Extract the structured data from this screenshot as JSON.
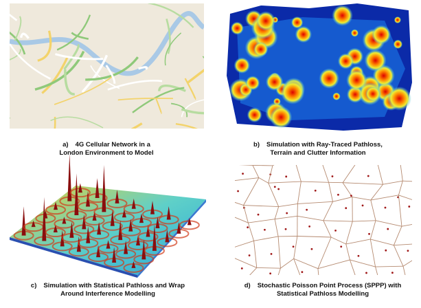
{
  "panels": [
    {
      "label": "a)",
      "caption": [
        "4G Cellular Network in a",
        "London Environment to Model"
      ]
    },
    {
      "label": "b)",
      "caption": [
        "Simulation with Ray-Traced Pathloss,",
        "Terrain and Clutter Information"
      ]
    },
    {
      "label": "c)",
      "caption": [
        "Simulation with Statistical Pathloss and Wrap",
        "Around Interference Modelling"
      ]
    },
    {
      "label": "d)",
      "caption": [
        "Stochastic Poisson Point Process (SPPP) with",
        "Statistical Pathloss Modelling"
      ]
    }
  ]
}
